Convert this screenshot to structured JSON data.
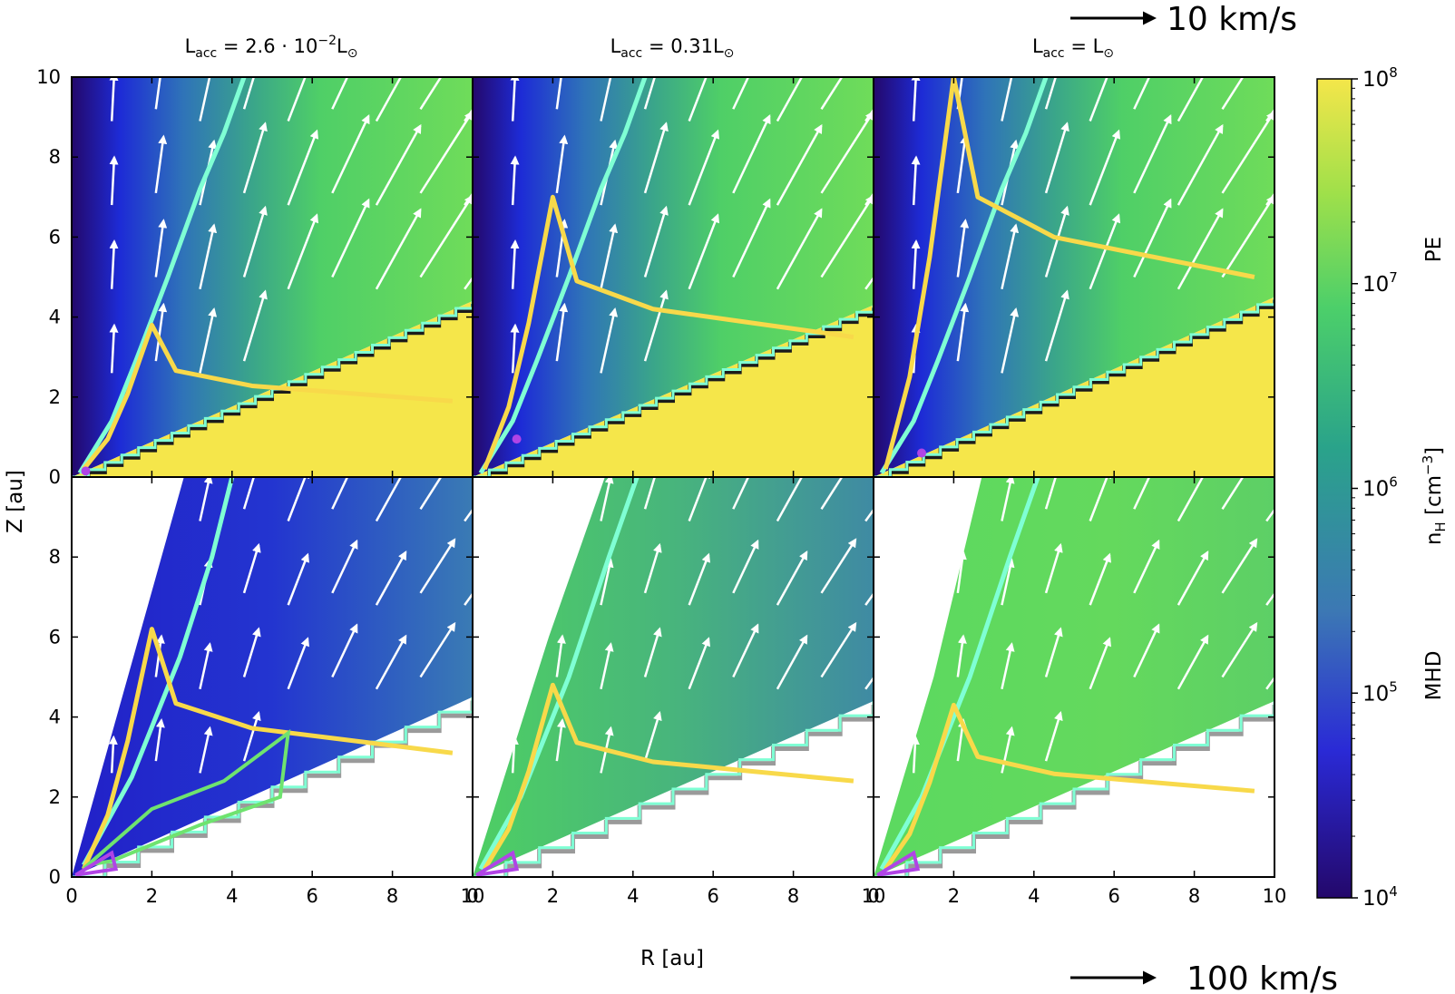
{
  "chart_data": {
    "type": "heatmap",
    "panel_titles": [
      "L_acc = 2.6 · 10^-2 L_⊙",
      "L_acc = 0.31L_⊙",
      "L_acc = L_⊙"
    ],
    "panel_title_parts": [
      {
        "base": "L",
        "sub": "acc",
        "mid": " = 2.6 · 10",
        "sup": "−2",
        "end": "L",
        "end_sub": "⊙"
      },
      {
        "base": "L",
        "sub": "acc",
        "mid": " = 0.31L",
        "sup": "",
        "end": "",
        "end_sub": "⊙"
      },
      {
        "base": "L",
        "sub": "acc",
        "mid": " = L",
        "sup": "",
        "end": "",
        "end_sub": "⊙"
      }
    ],
    "row_labels": [
      "PE",
      "MHD"
    ],
    "xlabel": "R [au]",
    "ylabel": "Z [au]",
    "xlim": [
      0,
      10
    ],
    "ylim": [
      0,
      10
    ],
    "x_ticks": [
      0,
      2,
      4,
      6,
      8,
      10
    ],
    "y_ticks": [
      0,
      2,
      4,
      6,
      8,
      10
    ],
    "y_ticks_lower": [
      0,
      2,
      4,
      6,
      8
    ],
    "colorbar": {
      "label_base": "n",
      "label_sub": "H",
      "label_rest": " [cm",
      "label_sup": "−3",
      "label_end": "]",
      "scale": "log",
      "range": [
        10000,
        100000000
      ],
      "ticks": [
        {
          "base": "10",
          "exp": "4"
        },
        {
          "base": "10",
          "exp": "5"
        },
        {
          "base": "10",
          "exp": "6"
        },
        {
          "base": "10",
          "exp": "7"
        },
        {
          "base": "10",
          "exp": "8"
        }
      ],
      "colors": [
        "#24086b",
        "#2a2ad6",
        "#3c78b4",
        "#2aa38a",
        "#4ccf6a",
        "#9fe04a",
        "#f4e64a"
      ]
    },
    "velocity_scales": [
      {
        "text": "10 km/s",
        "position": "top-right",
        "applies_to": "PE"
      },
      {
        "text": "100 km/s",
        "position": "bottom-right",
        "applies_to": "MHD"
      }
    ],
    "contour_colors": {
      "cyan": "#7fffd4",
      "yellow": "#f8d94a",
      "green": "#6fe36f",
      "magenta": "#b044e6",
      "disk": "#f5e64a",
      "dark": "#1b1b1b"
    },
    "panels": [
      {
        "row": "PE",
        "col": 0,
        "surface_z_at_r10": 4.4,
        "disk_filled": true,
        "yellow_contour_top": 3.8,
        "source_marker": [
          0.35,
          0.15
        ]
      },
      {
        "row": "PE",
        "col": 1,
        "surface_z_at_r10": 4.3,
        "disk_filled": true,
        "yellow_contour_top": 7.0,
        "source_marker": [
          1.1,
          0.95
        ]
      },
      {
        "row": "PE",
        "col": 2,
        "surface_z_at_r10": 4.5,
        "disk_filled": true,
        "yellow_contour_top": 10.0,
        "source_marker": [
          1.2,
          0.6
        ]
      },
      {
        "row": "MHD",
        "col": 0,
        "surface_z_at_r10": 4.5,
        "disk_filled": false,
        "yellow_contour_top": 6.2
      },
      {
        "row": "MHD",
        "col": 1,
        "surface_z_at_r10": 4.4,
        "disk_filled": false,
        "yellow_contour_top": 4.8
      },
      {
        "row": "MHD",
        "col": 2,
        "surface_z_at_r10": 4.4,
        "disk_filled": false,
        "yellow_contour_top": 4.3
      }
    ]
  }
}
